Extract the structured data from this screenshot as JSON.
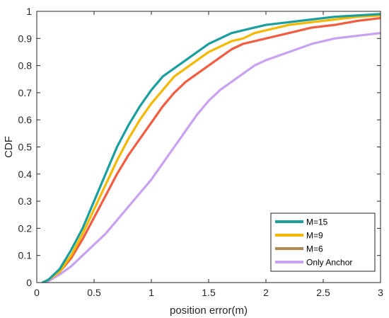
{
  "chart_data": {
    "type": "line",
    "xlabel": "position error(m)",
    "ylabel": "CDF",
    "xlim": [
      0,
      3
    ],
    "ylim": [
      0,
      1
    ],
    "x_ticks": [
      "0",
      "0.5",
      "1",
      "1.5",
      "2",
      "2.5",
      "3"
    ],
    "y_ticks": [
      "0",
      "0.1",
      "0.2",
      "0.3",
      "0.4",
      "0.5",
      "0.6",
      "0.7",
      "0.8",
      "0.9",
      "1"
    ],
    "grid": false,
    "legend_position": "bottom-right",
    "x": [
      0.05,
      0.1,
      0.2,
      0.3,
      0.4,
      0.5,
      0.6,
      0.7,
      0.8,
      0.9,
      1.0,
      1.1,
      1.2,
      1.3,
      1.4,
      1.5,
      1.6,
      1.7,
      1.8,
      1.9,
      2.0,
      2.2,
      2.4,
      2.6,
      2.8,
      3.0
    ],
    "series": [
      {
        "name": "M=15",
        "color": "#1a9e9e",
        "values": [
          0.0,
          0.01,
          0.05,
          0.12,
          0.2,
          0.3,
          0.4,
          0.5,
          0.58,
          0.65,
          0.71,
          0.76,
          0.79,
          0.82,
          0.85,
          0.88,
          0.9,
          0.92,
          0.93,
          0.94,
          0.95,
          0.96,
          0.97,
          0.98,
          0.985,
          0.99
        ]
      },
      {
        "name": "M=9",
        "color": "#f5b800",
        "values": [
          0.0,
          0.01,
          0.04,
          0.1,
          0.18,
          0.27,
          0.36,
          0.45,
          0.53,
          0.6,
          0.66,
          0.71,
          0.76,
          0.79,
          0.82,
          0.85,
          0.87,
          0.89,
          0.9,
          0.92,
          0.93,
          0.95,
          0.96,
          0.97,
          0.98,
          0.985
        ]
      },
      {
        "name": "M=6",
        "color": "#f25c40",
        "values": [
          0.0,
          0.01,
          0.04,
          0.09,
          0.16,
          0.24,
          0.32,
          0.4,
          0.47,
          0.53,
          0.59,
          0.65,
          0.7,
          0.74,
          0.77,
          0.8,
          0.83,
          0.86,
          0.88,
          0.89,
          0.9,
          0.92,
          0.94,
          0.95,
          0.965,
          0.975
        ]
      },
      {
        "name": "Only Anchor",
        "color": "#c8a2f2",
        "values": [
          0.0,
          0.005,
          0.03,
          0.06,
          0.1,
          0.14,
          0.18,
          0.23,
          0.28,
          0.33,
          0.38,
          0.44,
          0.5,
          0.56,
          0.62,
          0.67,
          0.71,
          0.74,
          0.77,
          0.8,
          0.82,
          0.85,
          0.88,
          0.9,
          0.91,
          0.92
        ]
      }
    ],
    "legend_line_colors": [
      "#1a9e9e",
      "#f5b800",
      "#b08850",
      "#c8a2f2"
    ]
  }
}
